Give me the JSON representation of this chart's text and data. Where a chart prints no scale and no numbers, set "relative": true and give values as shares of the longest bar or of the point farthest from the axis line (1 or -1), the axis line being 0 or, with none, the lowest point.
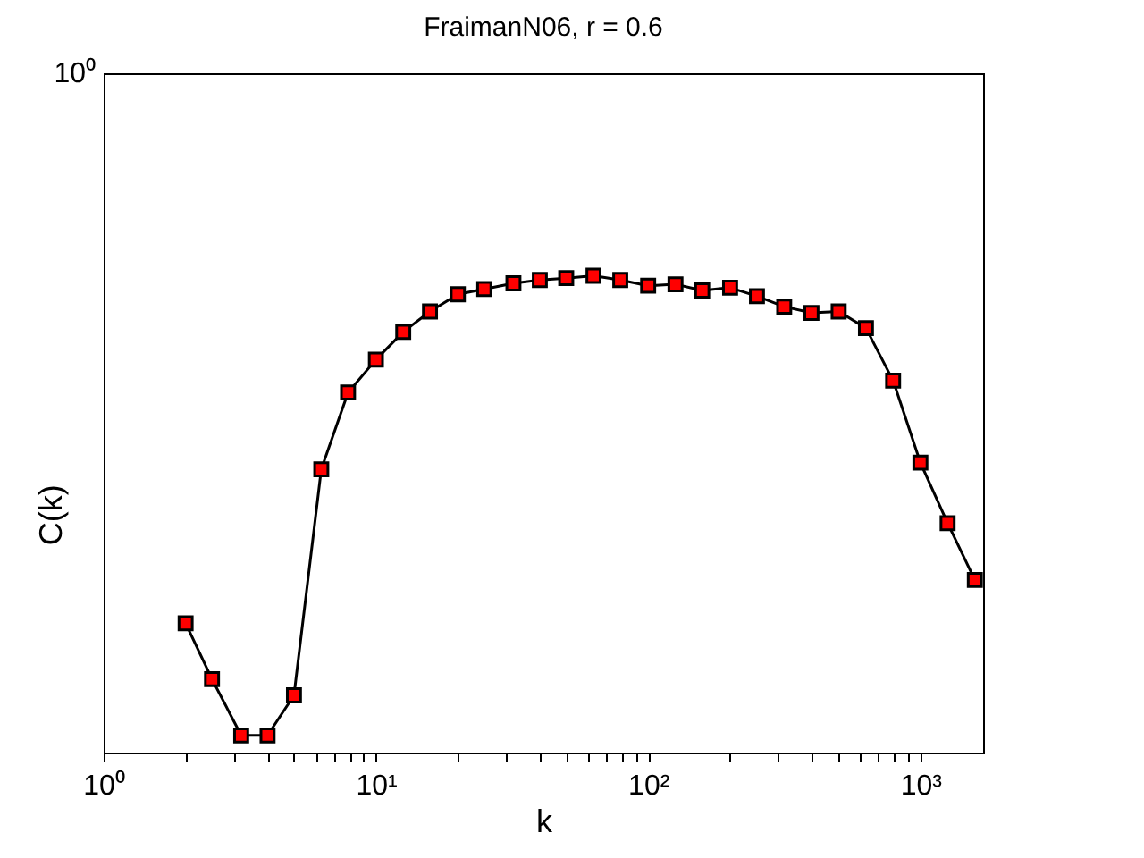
{
  "chart_data": {
    "type": "line",
    "title": "FraimanN06, r = 0.6",
    "xlabel": "k",
    "ylabel": "C(k)",
    "log": "x",
    "marker": "square",
    "line_style": "solid",
    "relative": true,
    "annotations": [
      "10⁰"
    ],
    "x": [
      2,
      2.5,
      3.2,
      4,
      5,
      6.3,
      7.9,
      10,
      12.6,
      15.8,
      20,
      25,
      32,
      40,
      50,
      63,
      79,
      100,
      126,
      158,
      200,
      251,
      316,
      398,
      501,
      631,
      794,
      1000,
      1259,
      1585
    ],
    "series": [
      {
        "color": "#ff0000",
        "values": [
          0.271,
          0.154,
          0.036,
          0.036,
          0.12,
          0.594,
          0.755,
          0.824,
          0.882,
          0.925,
          0.961,
          0.972,
          0.984,
          0.991,
          0.995,
          1,
          0.991,
          0.979,
          0.982,
          0.969,
          0.975,
          0.957,
          0.935,
          0.922,
          0.925,
          0.89,
          0.78,
          0.608,
          0.481,
          0.362
        ]
      }
    ],
    "xlim": [
      1,
      1700
    ],
    "xticks": [
      {
        "value": 1,
        "label": "10⁰"
      },
      {
        "value": 2,
        "label": null
      },
      {
        "value": 3,
        "label": null
      },
      {
        "value": 4,
        "label": null
      },
      {
        "value": 5,
        "label": null
      },
      {
        "value": 6,
        "label": null
      },
      {
        "value": 7,
        "label": null
      },
      {
        "value": 8,
        "label": null
      },
      {
        "value": 9,
        "label": null
      },
      {
        "value": 10,
        "label": "10¹"
      },
      {
        "value": 20,
        "label": null
      },
      {
        "value": 30,
        "label": null
      },
      {
        "value": 40,
        "label": null
      },
      {
        "value": 50,
        "label": null
      },
      {
        "value": 60,
        "label": null
      },
      {
        "value": 70,
        "label": null
      },
      {
        "value": 80,
        "label": null
      },
      {
        "value": 90,
        "label": null
      },
      {
        "value": 100,
        "label": "10²"
      },
      {
        "value": 200,
        "label": null
      },
      {
        "value": 300,
        "label": null
      },
      {
        "value": 400,
        "label": null
      },
      {
        "value": 500,
        "label": null
      },
      {
        "value": 600,
        "label": null
      },
      {
        "value": 700,
        "label": null
      },
      {
        "value": 800,
        "label": null
      },
      {
        "value": 900,
        "label": null
      },
      {
        "value": 1000,
        "label": "10³"
      }
    ]
  }
}
